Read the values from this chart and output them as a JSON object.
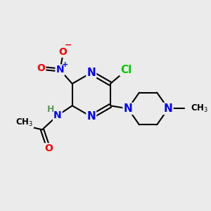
{
  "bg_color": "#ebebeb",
  "atom_colors": {
    "N": "#0000ff",
    "O": "#ff0000",
    "Cl": "#00cc00",
    "C": "#000000",
    "H": "#5a9a5a"
  },
  "figsize": [
    3.0,
    3.0
  ],
  "dpi": 100
}
